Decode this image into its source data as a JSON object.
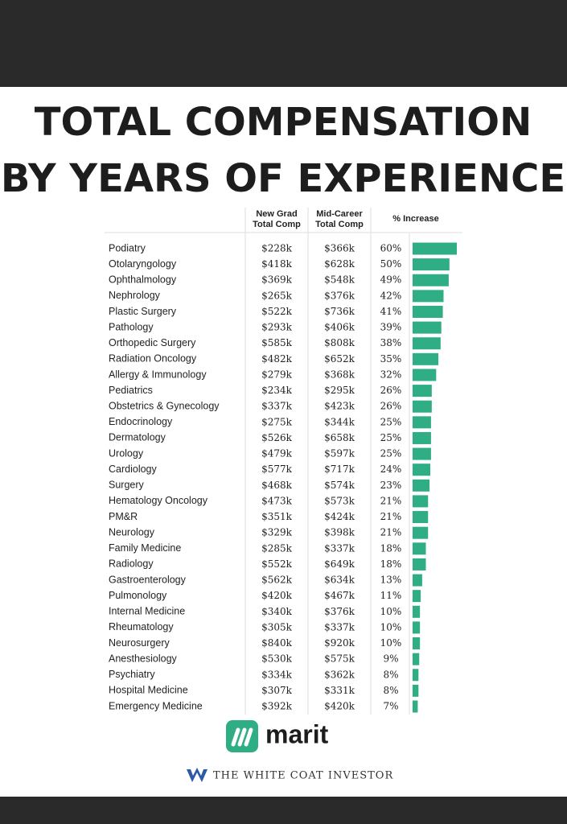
{
  "title": [
    "TOTAL COMPENSATION",
    "BY YEARS OF EXPERIENCE"
  ],
  "table": {
    "headers": [
      [
        "New Grad",
        "Total Comp"
      ],
      [
        "Mid-Career",
        "Total Comp"
      ],
      [
        "% Increase"
      ]
    ],
    "bar_color": "#2fad84",
    "rows": [
      {
        "name": "Podiatry",
        "new_grad": "$228k",
        "mid_career": "$366k",
        "increase": 60,
        "increase_label": "60%"
      },
      {
        "name": "Otolaryngology",
        "new_grad": "$418k",
        "mid_career": "$628k",
        "increase": 50,
        "increase_label": "50%"
      },
      {
        "name": "Ophthalmology",
        "new_grad": "$369k",
        "mid_career": "$548k",
        "increase": 49,
        "increase_label": "49%"
      },
      {
        "name": "Nephrology",
        "new_grad": "$265k",
        "mid_career": "$376k",
        "increase": 42,
        "increase_label": "42%"
      },
      {
        "name": "Plastic Surgery",
        "new_grad": "$522k",
        "mid_career": "$736k",
        "increase": 41,
        "increase_label": "41%"
      },
      {
        "name": "Pathology",
        "new_grad": "$293k",
        "mid_career": "$406k",
        "increase": 39,
        "increase_label": "39%"
      },
      {
        "name": "Orthopedic Surgery",
        "new_grad": "$585k",
        "mid_career": "$808k",
        "increase": 38,
        "increase_label": "38%"
      },
      {
        "name": "Radiation Oncology",
        "new_grad": "$482k",
        "mid_career": "$652k",
        "increase": 35,
        "increase_label": "35%"
      },
      {
        "name": "Allergy & Immunology",
        "new_grad": "$279k",
        "mid_career": "$368k",
        "increase": 32,
        "increase_label": "32%"
      },
      {
        "name": "Pediatrics",
        "new_grad": "$234k",
        "mid_career": "$295k",
        "increase": 26,
        "increase_label": "26%"
      },
      {
        "name": "Obstetrics & Gynecology",
        "new_grad": "$337k",
        "mid_career": "$423k",
        "increase": 26,
        "increase_label": "26%"
      },
      {
        "name": "Endocrinology",
        "new_grad": "$275k",
        "mid_career": "$344k",
        "increase": 25,
        "increase_label": "25%"
      },
      {
        "name": "Dermatology",
        "new_grad": "$526k",
        "mid_career": "$658k",
        "increase": 25,
        "increase_label": "25%"
      },
      {
        "name": "Urology",
        "new_grad": "$479k",
        "mid_career": "$597k",
        "increase": 25,
        "increase_label": "25%"
      },
      {
        "name": "Cardiology",
        "new_grad": "$577k",
        "mid_career": "$717k",
        "increase": 24,
        "increase_label": "24%"
      },
      {
        "name": "Surgery",
        "new_grad": "$468k",
        "mid_career": "$574k",
        "increase": 23,
        "increase_label": "23%"
      },
      {
        "name": "Hematology Oncology",
        "new_grad": "$473k",
        "mid_career": "$573k",
        "increase": 21,
        "increase_label": "21%"
      },
      {
        "name": "PM&R",
        "new_grad": "$351k",
        "mid_career": "$424k",
        "increase": 21,
        "increase_label": "21%"
      },
      {
        "name": "Neurology",
        "new_grad": "$329k",
        "mid_career": "$398k",
        "increase": 21,
        "increase_label": "21%"
      },
      {
        "name": "Family Medicine",
        "new_grad": "$285k",
        "mid_career": "$337k",
        "increase": 18,
        "increase_label": "18%"
      },
      {
        "name": "Radiology",
        "new_grad": "$552k",
        "mid_career": "$649k",
        "increase": 18,
        "increase_label": "18%"
      },
      {
        "name": "Gastroenterology",
        "new_grad": "$562k",
        "mid_career": "$634k",
        "increase": 13,
        "increase_label": "13%"
      },
      {
        "name": "Pulmonology",
        "new_grad": "$420k",
        "mid_career": "$467k",
        "increase": 11,
        "increase_label": "11%"
      },
      {
        "name": "Internal Medicine",
        "new_grad": "$340k",
        "mid_career": "$376k",
        "increase": 10,
        "increase_label": "10%"
      },
      {
        "name": "Rheumatology",
        "new_grad": "$305k",
        "mid_career": "$337k",
        "increase": 10,
        "increase_label": "10%"
      },
      {
        "name": "Neurosurgery",
        "new_grad": "$840k",
        "mid_career": "$920k",
        "increase": 10,
        "increase_label": "10%"
      },
      {
        "name": "Anesthesiology",
        "new_grad": "$530k",
        "mid_career": "$575k",
        "increase": 9,
        "increase_label": "9%"
      },
      {
        "name": "Psychiatry",
        "new_grad": "$334k",
        "mid_career": "$362k",
        "increase": 8,
        "increase_label": "8%"
      },
      {
        "name": "Hospital Medicine",
        "new_grad": "$307k",
        "mid_career": "$331k",
        "increase": 8,
        "increase_label": "8%"
      },
      {
        "name": "Emergency Medicine",
        "new_grad": "$392k",
        "mid_career": "$420k",
        "increase": 7,
        "increase_label": "7%"
      }
    ]
  },
  "logo": "marit",
  "footer": "THE WHITE COAT INVESTOR"
}
